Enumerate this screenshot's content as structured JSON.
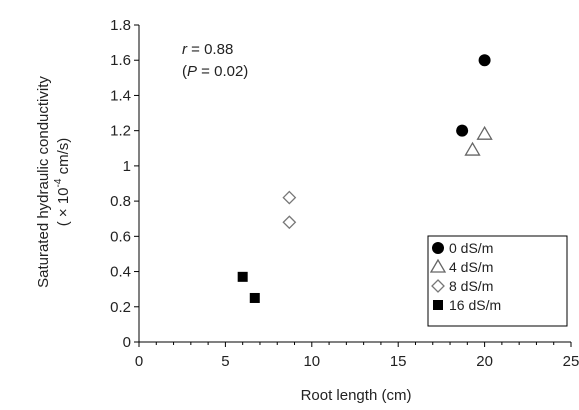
{
  "chart_data": {
    "type": "scatter",
    "xlabel": "Root length (cm)",
    "ylabel_line1": "Saturated hydraulic conductivity",
    "ylabel_line2_prefix": "( × 10",
    "ylabel_line2_sup": "-4",
    "ylabel_line2_suffix": " cm/s)",
    "xlim": [
      0,
      25
    ],
    "ylim": [
      0,
      1.8
    ],
    "x_ticks": [
      0,
      5,
      10,
      15,
      20,
      25
    ],
    "y_ticks": [
      0,
      0.2,
      0.4,
      0.6,
      0.8,
      1,
      1.2,
      1.4,
      1.6,
      1.8
    ],
    "x_tick_labels": [
      "0",
      "5",
      "10",
      "15",
      "20",
      "25"
    ],
    "y_tick_labels": [
      "0",
      "0.2",
      "0.4",
      "0.6",
      "0.8",
      "1",
      "1.2",
      "1.4",
      "1.6",
      "1.8"
    ],
    "grid": false,
    "legend_position": "bottom-right",
    "annotation": {
      "r_symbol": "r",
      "r_value": " = 0.88",
      "p_open": "(",
      "p_symbol": "P",
      "p_value": " = 0.02)"
    },
    "series": [
      {
        "name": "0 dS/m",
        "marker": "circle-filled",
        "points": [
          {
            "x": 18.7,
            "y": 1.2
          },
          {
            "x": 20.0,
            "y": 1.6
          }
        ]
      },
      {
        "name": "4 dS/m",
        "marker": "triangle-open",
        "points": [
          {
            "x": 19.3,
            "y": 1.09
          },
          {
            "x": 20.0,
            "y": 1.18
          }
        ]
      },
      {
        "name": "8 dS/m",
        "marker": "diamond-open",
        "points": [
          {
            "x": 8.7,
            "y": 0.82
          },
          {
            "x": 8.7,
            "y": 0.68
          }
        ]
      },
      {
        "name": "16 dS/m",
        "marker": "square-filled",
        "points": [
          {
            "x": 6.0,
            "y": 0.37
          },
          {
            "x": 6.7,
            "y": 0.25
          }
        ]
      }
    ]
  }
}
